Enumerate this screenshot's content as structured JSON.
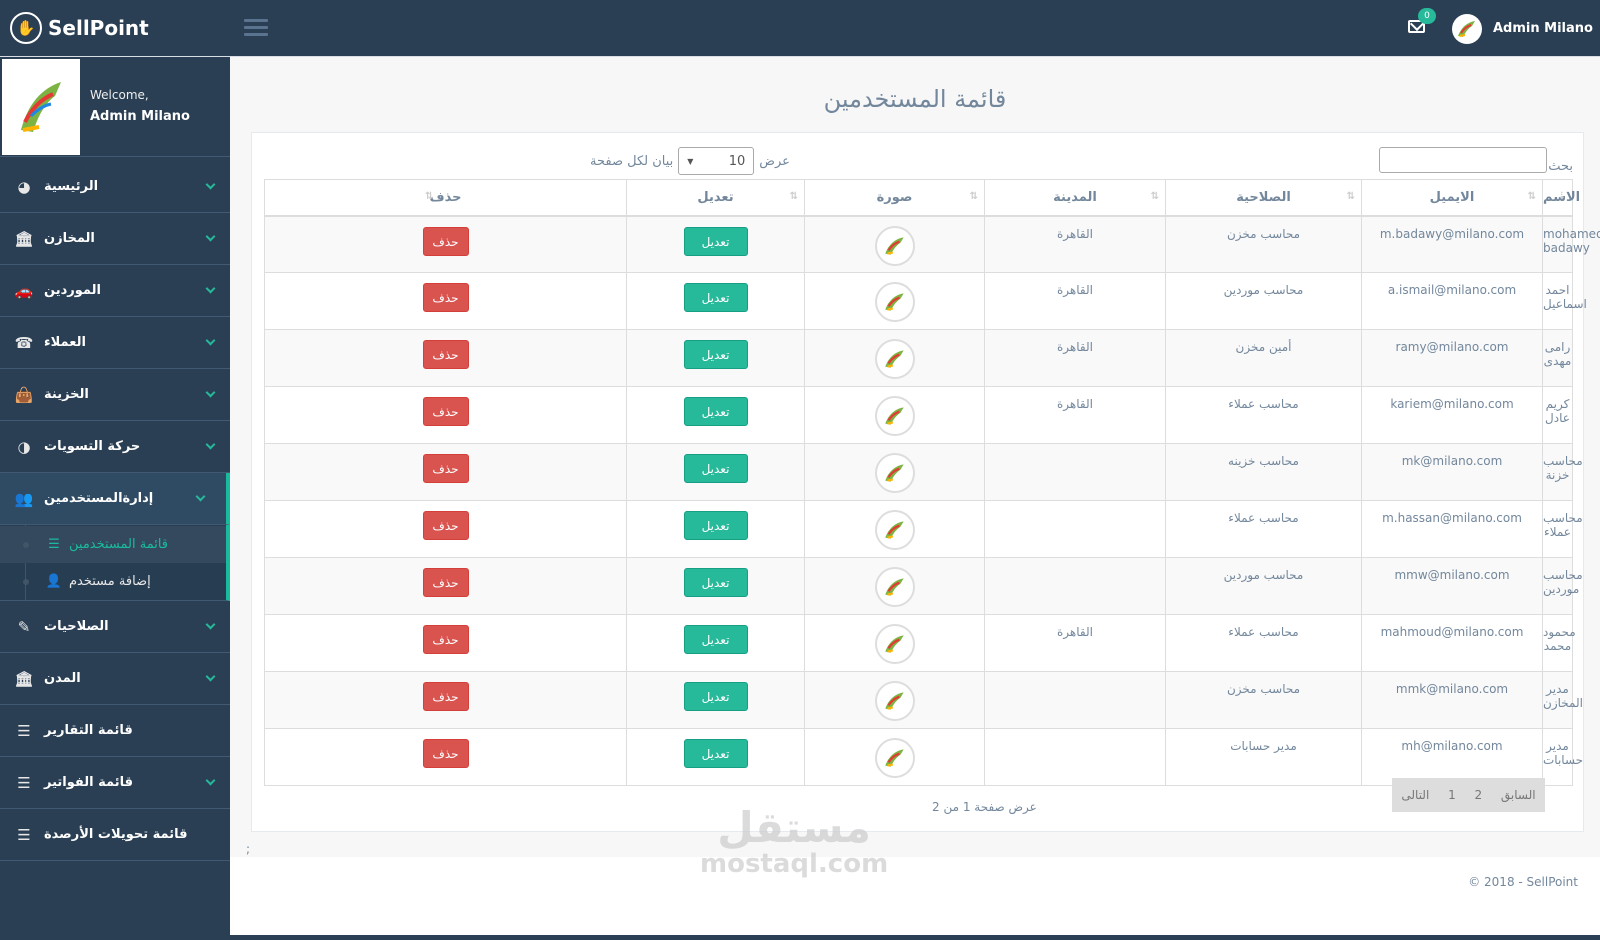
{
  "brand": {
    "name": "SellPoint"
  },
  "topbar": {
    "mail_count": "0",
    "user_name": "Admin Milano"
  },
  "profile": {
    "welcome": "Welcome,",
    "name": "Admin Milano"
  },
  "sidebar": {
    "items": [
      {
        "label": "الرئيسية",
        "icon": "dashboard-icon"
      },
      {
        "label": "المخازن",
        "icon": "bank-icon"
      },
      {
        "label": "الموردين",
        "icon": "car-icon"
      },
      {
        "label": "العملاء",
        "icon": "phone-icon"
      },
      {
        "label": "الخزينة",
        "icon": "bag-icon"
      },
      {
        "label": "حركة التسويات",
        "icon": "adjust-icon"
      },
      {
        "label": "إدارةالمستخدمين",
        "icon": "users-icon"
      },
      {
        "label": "الصلاحيات",
        "icon": "pencil-icon"
      },
      {
        "label": "المدن",
        "icon": "bank-icon"
      },
      {
        "label": "قائمة التقارير",
        "icon": "list-icon"
      },
      {
        "label": "قائمة الفواتير",
        "icon": "list-icon"
      },
      {
        "label": "قائمة تحويلات الأرصدة",
        "icon": "list-icon"
      }
    ],
    "sub_items": [
      {
        "label": "قائمة المستخدمين",
        "icon": "list-icon"
      },
      {
        "label": "إضافة مستخدم",
        "icon": "user-plus-icon"
      }
    ]
  },
  "main": {
    "title": "قائمة المستخدمين",
    "search_label": "بحث",
    "length": {
      "prefix": "عرض",
      "value": "10",
      "suffix": "بيان لكل صفحة"
    },
    "columns": [
      "الاسم",
      "الايميل",
      "الصلاحية",
      "المدينة",
      "صورة",
      "تعديل",
      "حذف"
    ],
    "rows": [
      {
        "name": "mohamed badawy",
        "email": "m.badawy@milano.com",
        "role": "محاسب مخزن",
        "city": "القاهرة"
      },
      {
        "name": "احمد اسماعيل",
        "email": "a.ismail@milano.com",
        "role": "محاسب موردين",
        "city": "القاهرة"
      },
      {
        "name": "رامى مهدى",
        "email": "ramy@milano.com",
        "role": "أمين مخزن",
        "city": "القاهرة"
      },
      {
        "name": "كريم عادل",
        "email": "kariem@milano.com",
        "role": "محاسب عملاء",
        "city": "القاهرة"
      },
      {
        "name": "محاسب خزنة",
        "email": "mk@milano.com",
        "role": "محاسب خزينه",
        "city": ""
      },
      {
        "name": "محاسب عملاء",
        "email": "m.hassan@milano.com",
        "role": "محاسب عملاء",
        "city": ""
      },
      {
        "name": "محاسب موردين",
        "email": "mmw@milano.com",
        "role": "محاسب موردين",
        "city": ""
      },
      {
        "name": "محمود محمد",
        "email": "mahmoud@milano.com",
        "role": "محاسب عملاء",
        "city": "القاهرة"
      },
      {
        "name": "مدير المخازن",
        "email": "mmk@milano.com",
        "role": "محاسب مخزن",
        "city": ""
      },
      {
        "name": "مدير حسابات",
        "email": "mh@milano.com",
        "role": "مدير حسابات",
        "city": ""
      }
    ],
    "edit_label": "تعديل",
    "delete_label": "حذف",
    "info": "عرض صفحة 1 من 2",
    "pagination": {
      "prev": "السابق",
      "pages": [
        "2",
        "1"
      ],
      "next": "التالى"
    },
    "stray": ";"
  },
  "footer": {
    "text": "© 2018 - SellPoint"
  },
  "watermark": {
    "ar": "مستقل",
    "en": "mostaql.com"
  },
  "colors": {
    "sidebar": "#2a3f54",
    "accent": "#26b99a",
    "danger": "#d9534f"
  }
}
